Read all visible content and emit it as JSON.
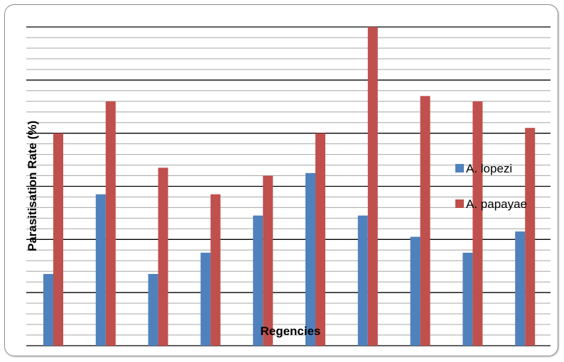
{
  "chart_data": {
    "type": "bar",
    "title": "",
    "xlabel": "Regencies",
    "ylabel": "Parasitisation Rate (%)",
    "categories": [
      "",
      "",
      "",
      "",
      "",
      "",
      "",
      "",
      "",
      ""
    ],
    "series": [
      {
        "name": "A. lopezi",
        "color": "#4f81bd",
        "values": [
          13.5,
          28.5,
          13.5,
          17.5,
          24.5,
          32.5,
          24.5,
          20.5,
          17.5,
          21.5
        ]
      },
      {
        "name": "A. papayae",
        "color": "#c0504d",
        "values": [
          40,
          46,
          33.5,
          28.5,
          32,
          40,
          60,
          47,
          46,
          41
        ]
      }
    ],
    "ylim": [
      0,
      60
    ],
    "grid": true,
    "legend_position": "right"
  }
}
